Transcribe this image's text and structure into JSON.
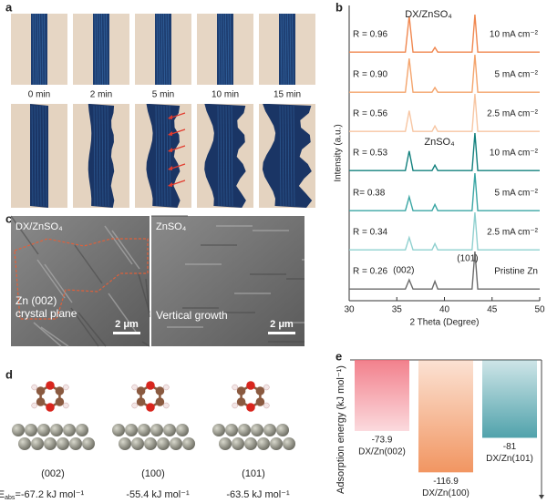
{
  "panel_labels": [
    "a",
    "b",
    "c",
    "d",
    "e"
  ],
  "panel_a": {
    "times": [
      "0 min",
      "2 min",
      "5 min",
      "10 min",
      "15 min"
    ]
  },
  "panel_c": {
    "images": [
      {
        "label": "DX/ZnSO₄",
        "caption": [
          "Zn (002)",
          "crystal plane"
        ],
        "scale_bar": "2 μm"
      },
      {
        "label": "ZnSO₄",
        "caption": [
          "Vertical growth"
        ],
        "scale_bar": "2 μm"
      }
    ]
  },
  "panel_d": {
    "energy_label": {
      "symbol": "E",
      "subscript": "abs",
      "prefix": "="
    },
    "unit": "kJ mol⁻¹",
    "facets": [
      {
        "label": "(002)",
        "energy": -67.2
      },
      {
        "label": "(100)",
        "energy": -55.4
      },
      {
        "label": "(101)",
        "energy": -63.5
      }
    ]
  },
  "chart_data": [
    {
      "type": "line",
      "xlabel": "2 Theta (Degree)",
      "ylabel": "Intensity (a.u.)",
      "x": [
        30,
        35.9,
        36.3,
        36.7,
        38.7,
        39.0,
        39.3,
        42.9,
        43.2,
        43.5,
        50
      ],
      "xlim": [
        30,
        50
      ],
      "xticks": [
        30,
        35,
        40,
        45,
        50
      ],
      "ylim": [
        0,
        100
      ],
      "group_labels": [
        "DX/ZnSO₄",
        "ZnSO₄"
      ],
      "peak_labels": [
        "(002)",
        "(101)"
      ],
      "series": [
        {
          "name": "10 mA cm⁻²",
          "ratio_label": "R = 0.96",
          "color": "#f0874f",
          "values": [
            2,
            2,
            96,
            2,
            2,
            14,
            2,
            2,
            100,
            2,
            2
          ]
        },
        {
          "name": "5 mA cm⁻²",
          "ratio_label": "R = 0.90",
          "color": "#f4a46c",
          "values": [
            2,
            2,
            90,
            2,
            2,
            14,
            2,
            2,
            100,
            2,
            2
          ]
        },
        {
          "name": "2.5 mA cm⁻²",
          "ratio_label": "R = 0.56",
          "color": "#f7c6a3",
          "values": [
            2,
            2,
            56,
            2,
            2,
            16,
            2,
            2,
            100,
            2,
            2
          ]
        },
        {
          "name": "10 mA cm⁻²",
          "ratio_label": "R = 0.53",
          "color": "#12807d",
          "values": [
            2,
            2,
            53,
            2,
            2,
            16,
            2,
            2,
            100,
            2,
            2
          ]
        },
        {
          "name": "5 mA cm⁻²",
          "ratio_label": "R= 0.38",
          "color": "#3aa6a4",
          "values": [
            2,
            2,
            38,
            2,
            2,
            18,
            2,
            2,
            100,
            2,
            2
          ]
        },
        {
          "name": "2.5 mA cm⁻²",
          "ratio_label": "R = 0.34",
          "color": "#8fd0cf",
          "values": [
            2,
            2,
            34,
            2,
            2,
            18,
            2,
            2,
            100,
            2,
            2
          ]
        },
        {
          "name": "Pristine Zn",
          "ratio_label": "R = 0.26",
          "color": "#6b6b6b",
          "values": [
            2,
            2,
            26,
            2,
            2,
            22,
            2,
            2,
            100,
            2,
            2
          ]
        }
      ]
    },
    {
      "type": "bar",
      "ylabel": "Adsorption energy (kJ mol⁻¹)",
      "categories": [
        "DX/Zn(002)",
        "DX/Zn(100)",
        "DX/Zn(101)"
      ],
      "values": [
        -73.9,
        -116.9,
        -81
      ],
      "colors": [
        "#f06a78",
        "#f08a50",
        "#3d98a2"
      ],
      "ylim": [
        -145,
        0
      ]
    }
  ]
}
